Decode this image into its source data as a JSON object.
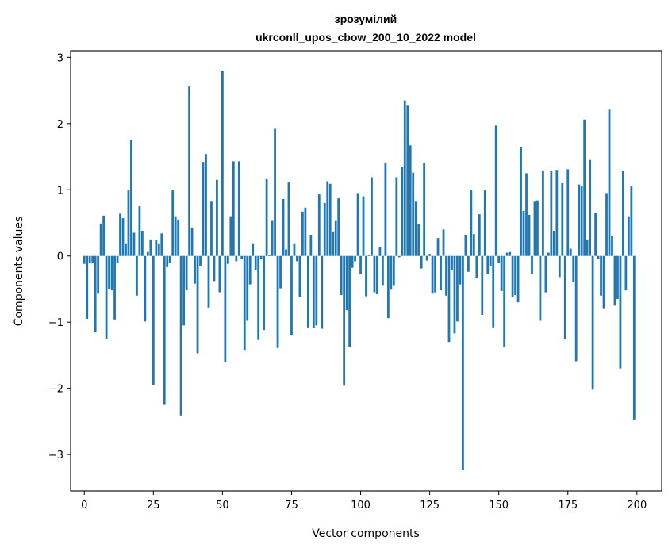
{
  "chart_data": {
    "type": "bar",
    "title_line1": "зрозумілий",
    "title_line2": "ukrconll_upos_cbow_200_10_2022 model",
    "xlabel": "Vector components",
    "ylabel": "Components values",
    "xlim": [
      -4.95,
      208.95
    ],
    "ylim": [
      -3.55,
      3.1
    ],
    "xticks": [
      0,
      25,
      50,
      75,
      100,
      125,
      150,
      175,
      200
    ],
    "xtick_labels": [
      "0",
      "25",
      "50",
      "75",
      "100",
      "125",
      "150",
      "175",
      "200"
    ],
    "yticks": [
      -3,
      -2,
      -1,
      0,
      1,
      2,
      3
    ],
    "ytick_labels": [
      "−3",
      "−2",
      "−1",
      "0",
      "1",
      "2",
      "3"
    ],
    "bar_color": "#1f77b4",
    "grid": false,
    "values": [
      -0.12,
      -0.95,
      -0.1,
      -0.1,
      -1.15,
      -0.57,
      0.49,
      0.61,
      -1.25,
      -0.5,
      -0.52,
      -0.96,
      -0.1,
      0.64,
      0.57,
      0.18,
      0.99,
      1.75,
      0.35,
      -0.6,
      0.75,
      0.38,
      -0.99,
      0.06,
      0.25,
      -1.95,
      0.24,
      0.18,
      0.34,
      -2.25,
      -0.17,
      -0.1,
      0.99,
      0.6,
      0.55,
      -2.41,
      -1.05,
      -0.52,
      2.56,
      0.43,
      -0.42,
      -1.47,
      -0.15,
      1.42,
      1.54,
      -0.78,
      0.82,
      -0.38,
      1.15,
      -0.55,
      2.8,
      -1.61,
      -0.12,
      0.6,
      1.43,
      -0.08,
      1.43,
      -0.05,
      -1.42,
      -0.98,
      -0.43,
      0.18,
      -0.22,
      -1.27,
      -0.05,
      -1.12,
      1.16,
      0.01,
      0.53,
      1.92,
      -1.39,
      -0.49,
      0.86,
      0.1,
      1.11,
      -1.2,
      0.18,
      -0.08,
      -0.62,
      0.67,
      0.73,
      -1.08,
      0.32,
      -1.09,
      -1.05,
      0.93,
      -1.1,
      0.8,
      1.13,
      1.09,
      0.37,
      0.53,
      0.87,
      -0.59,
      -1.96,
      -0.82,
      -1.37,
      -0.18,
      -0.08,
      0.95,
      -0.28,
      0.9,
      -0.61,
      0.02,
      1.19,
      -0.55,
      -0.58,
      0.13,
      -0.44,
      1.41,
      -0.94,
      -0.51,
      -0.44,
      1.19,
      -0.02,
      1.35,
      2.35,
      2.27,
      1.67,
      1.26,
      0.82,
      0.48,
      -0.19,
      1.4,
      -0.07,
      0.03,
      -0.57,
      -0.55,
      0.27,
      -0.52,
      0.4,
      -0.6,
      -1.3,
      -0.21,
      -1.17,
      -0.99,
      -0.43,
      -3.23,
      0.32,
      -0.24,
      0.99,
      0.33,
      -0.34,
      0.63,
      -0.89,
      0.99,
      -0.27,
      -0.16,
      -1.08,
      1.97,
      -0.11,
      -0.53,
      -1.38,
      0.05,
      0.06,
      -0.62,
      -0.59,
      -0.7,
      1.65,
      0.68,
      1.25,
      0.62,
      -0.28,
      0.82,
      0.84,
      -0.98,
      1.28,
      -0.55,
      0.05,
      1.29,
      0.38,
      1.3,
      -0.32,
      1.1,
      -1.26,
      1.31,
      0.11,
      -0.4,
      -1.59,
      1.08,
      1.05,
      2.06,
      0.25,
      1.45,
      -2.02,
      0.65,
      -0.04,
      -0.6,
      -0.79,
      0.95,
      2.21,
      0.31,
      -0.75,
      -0.65,
      -1.7,
      1.28,
      -0.52,
      0.6,
      1.05,
      -2.47
    ]
  }
}
